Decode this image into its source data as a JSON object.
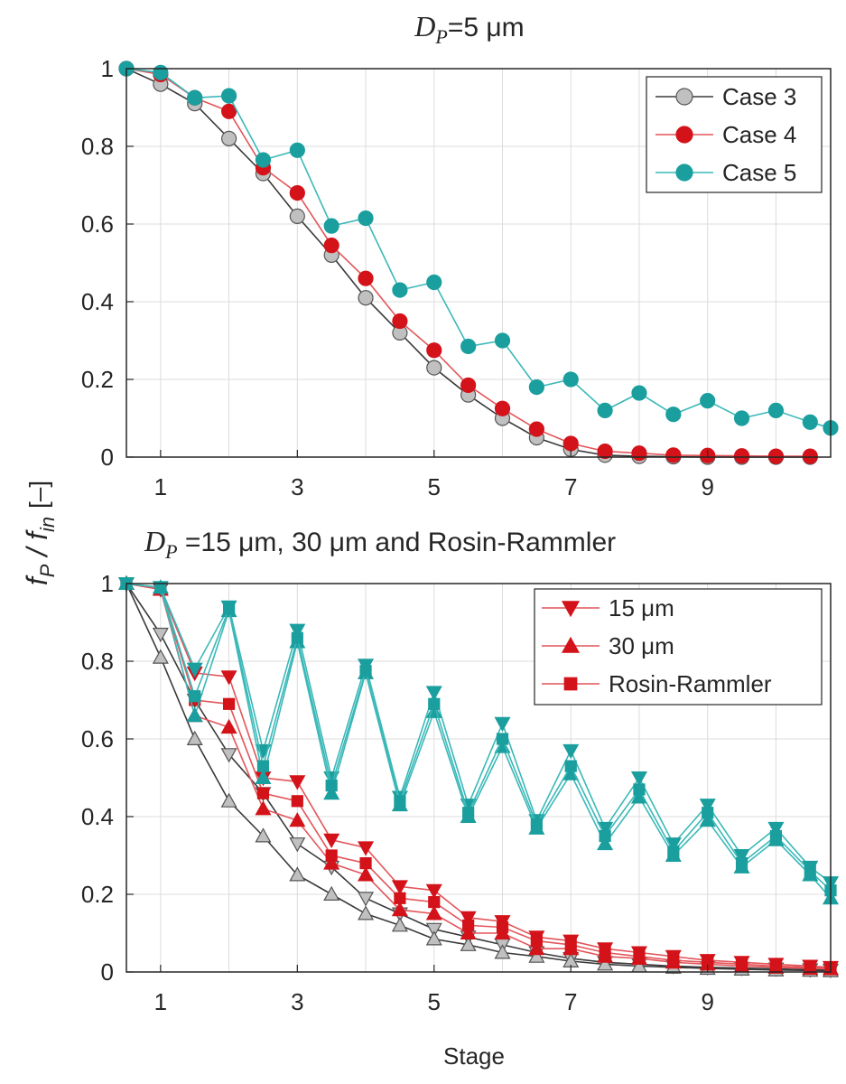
{
  "figure": {
    "ylabel_main": "f",
    "ylabel_sub1": "P",
    "ylabel_div": "/",
    "ylabel_sub2": "in",
    "ylabel_unit": "[–]",
    "xlabel": "Stage",
    "colors": {
      "gray": "#7f7f7f",
      "gray_fill": "#c0c0c0",
      "red": "#d31219",
      "red_line": "#e3555a",
      "teal": "#1a9e9e",
      "teal_line": "#3bb8b8"
    }
  },
  "chart_data": [
    {
      "type": "line",
      "title_main": "D",
      "title_sub": "P",
      "title_rest": "=5 μm",
      "xlim": [
        0.5,
        10.8
      ],
      "ylim": [
        0,
        1
      ],
      "xticks": [
        1,
        3,
        5,
        7,
        9
      ],
      "yticks": [
        0,
        0.2,
        0.4,
        0.6,
        0.8,
        1
      ],
      "ytick_labels": [
        "0",
        "0.2",
        "0.4",
        "0.6",
        "0.8",
        "1"
      ],
      "grid": true,
      "legend_position": "top-right",
      "x": [
        0.5,
        1,
        1.5,
        2,
        2.5,
        3,
        3.5,
        4,
        4.5,
        5,
        5.5,
        6,
        6.5,
        7,
        7.5,
        8,
        8.5,
        9,
        9.5,
        10,
        10.5
      ],
      "series": [
        {
          "name": "Case 3",
          "marker": "circle",
          "color": "gray",
          "values": [
            1.0,
            0.96,
            0.91,
            0.82,
            0.73,
            0.62,
            0.52,
            0.41,
            0.32,
            0.23,
            0.16,
            0.1,
            0.05,
            0.02,
            0.005,
            0.002,
            0.001,
            0.0,
            0.0,
            0.0,
            0.0
          ]
        },
        {
          "name": "Case 4",
          "marker": "circle",
          "color": "red",
          "values": [
            1.0,
            0.985,
            0.925,
            0.89,
            0.745,
            0.68,
            0.545,
            0.46,
            0.35,
            0.275,
            0.185,
            0.125,
            0.072,
            0.035,
            0.015,
            0.01,
            0.005,
            0.004,
            0.003,
            0.002,
            0.002
          ]
        },
        {
          "name": "Case 5",
          "marker": "circle",
          "color": "teal",
          "values": [
            1.0,
            0.99,
            0.925,
            0.93,
            0.765,
            0.79,
            0.595,
            0.615,
            0.43,
            0.45,
            0.285,
            0.3,
            0.18,
            0.2,
            0.12,
            0.165,
            0.11,
            0.145,
            0.1,
            0.12,
            0.09
          ]
        }
      ],
      "extra_series_last_value": {
        "series": "Case 5",
        "x": 10.8,
        "value": 0.075
      }
    },
    {
      "type": "line",
      "title_main": "D",
      "title_sub": "P",
      "title_rest": " =15 μm, 30 μm and Rosin-Rammler",
      "xlim": [
        0.5,
        10.8
      ],
      "ylim": [
        0,
        1
      ],
      "xticks": [
        1,
        3,
        5,
        7,
        9
      ],
      "yticks": [
        0,
        0.2,
        0.4,
        0.6,
        0.8,
        1
      ],
      "ytick_labels": [
        "0",
        "0.2",
        "0.4",
        "0.6",
        "0.8",
        "1"
      ],
      "grid": true,
      "legend_position": "top-right",
      "legend": [
        {
          "name": "15 μm",
          "marker": "triangle-down"
        },
        {
          "name": "30 μm",
          "marker": "triangle-up"
        },
        {
          "name": "Rosin-Rammler",
          "marker": "square"
        }
      ],
      "x": [
        0.5,
        1,
        1.5,
        2,
        2.5,
        3,
        3.5,
        4,
        4.5,
        5,
        5.5,
        6,
        6.5,
        7,
        7.5,
        8,
        8.5,
        9,
        9.5,
        10,
        10.5,
        10.8
      ],
      "series": [
        {
          "name": "15 μm",
          "marker": "triangle-down",
          "color": "gray",
          "values": [
            1.0,
            0.87,
            0.7,
            0.56,
            0.46,
            0.33,
            0.27,
            0.19,
            0.15,
            0.11,
            0.09,
            0.07,
            0.05,
            0.035,
            0.025,
            0.02,
            0.015,
            0.012,
            0.01,
            0.008,
            0.006,
            0.005
          ]
        },
        {
          "name": "30 μm",
          "marker": "triangle-up",
          "color": "gray",
          "values": [
            1.0,
            0.81,
            0.6,
            0.44,
            0.35,
            0.25,
            0.2,
            0.15,
            0.12,
            0.085,
            0.07,
            0.05,
            0.04,
            0.028,
            0.02,
            0.015,
            0.012,
            0.009,
            0.007,
            0.005,
            0.004,
            0.003
          ]
        },
        {
          "name": "15 μm",
          "marker": "triangle-down",
          "color": "red",
          "values": [
            1.0,
            0.985,
            0.77,
            0.76,
            0.5,
            0.49,
            0.34,
            0.32,
            0.22,
            0.21,
            0.14,
            0.13,
            0.09,
            0.08,
            0.06,
            0.05,
            0.04,
            0.03,
            0.025,
            0.02,
            0.015,
            0.012
          ]
        },
        {
          "name": "30 μm",
          "marker": "triangle-up",
          "color": "red",
          "values": [
            1.0,
            0.985,
            0.66,
            0.63,
            0.42,
            0.39,
            0.28,
            0.25,
            0.16,
            0.15,
            0.1,
            0.1,
            0.06,
            0.06,
            0.04,
            0.035,
            0.025,
            0.02,
            0.015,
            0.012,
            0.009,
            0.008
          ]
        },
        {
          "name": "Rosin-Rammler",
          "marker": "square",
          "color": "red",
          "values": [
            1.0,
            0.985,
            0.7,
            0.69,
            0.46,
            0.44,
            0.3,
            0.28,
            0.19,
            0.18,
            0.12,
            0.115,
            0.08,
            0.07,
            0.05,
            0.04,
            0.03,
            0.025,
            0.02,
            0.015,
            0.012,
            0.01
          ]
        },
        {
          "name": "15 μm",
          "marker": "triangle-down",
          "color": "teal",
          "values": [
            1.0,
            0.99,
            0.78,
            0.94,
            0.57,
            0.88,
            0.5,
            0.79,
            0.45,
            0.72,
            0.43,
            0.64,
            0.39,
            0.57,
            0.37,
            0.5,
            0.33,
            0.43,
            0.3,
            0.37,
            0.27,
            0.23
          ]
        },
        {
          "name": "30 μm",
          "marker": "triangle-up",
          "color": "teal",
          "values": [
            1.0,
            0.99,
            0.66,
            0.93,
            0.5,
            0.85,
            0.46,
            0.77,
            0.43,
            0.67,
            0.4,
            0.58,
            0.37,
            0.51,
            0.33,
            0.45,
            0.3,
            0.39,
            0.27,
            0.34,
            0.25,
            0.19
          ]
        },
        {
          "name": "Rosin-Rammler",
          "marker": "square",
          "color": "teal",
          "values": [
            1.0,
            0.99,
            0.71,
            0.935,
            0.53,
            0.86,
            0.48,
            0.775,
            0.44,
            0.69,
            0.41,
            0.6,
            0.38,
            0.53,
            0.35,
            0.47,
            0.31,
            0.41,
            0.28,
            0.35,
            0.26,
            0.21
          ]
        }
      ]
    }
  ]
}
